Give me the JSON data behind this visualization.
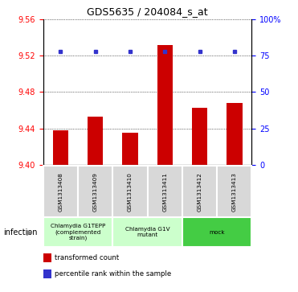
{
  "title": "GDS5635 / 204084_s_at",
  "samples": [
    "GSM1313408",
    "GSM1313409",
    "GSM1313410",
    "GSM1313411",
    "GSM1313412",
    "GSM1313413"
  ],
  "bar_values": [
    9.438,
    9.453,
    9.435,
    9.531,
    9.463,
    9.468
  ],
  "percentile_y": [
    9.524,
    9.524,
    9.524,
    9.524,
    9.524,
    9.524
  ],
  "ylim": [
    9.4,
    9.56
  ],
  "yticks_left": [
    9.4,
    9.44,
    9.48,
    9.52,
    9.56
  ],
  "yticks_right": [
    0,
    25,
    50,
    75,
    100
  ],
  "yticks_right_labels": [
    "0",
    "25",
    "50",
    "75",
    "100%"
  ],
  "bar_color": "#cc0000",
  "dot_color": "#3333cc",
  "group_colors": [
    "#ccffcc",
    "#ccffcc",
    "#44cc44"
  ],
  "group_labels": [
    "Chlamydia G1TEPP\n(complemented\nstrain)",
    "Chlamydia G1V\nmutant",
    "mock"
  ],
  "group_ranges": [
    [
      0,
      2
    ],
    [
      2,
      4
    ],
    [
      4,
      6
    ]
  ],
  "legend_items": [
    {
      "color": "#cc0000",
      "label": "transformed count"
    },
    {
      "color": "#3333cc",
      "label": "percentile rank within the sample"
    }
  ]
}
